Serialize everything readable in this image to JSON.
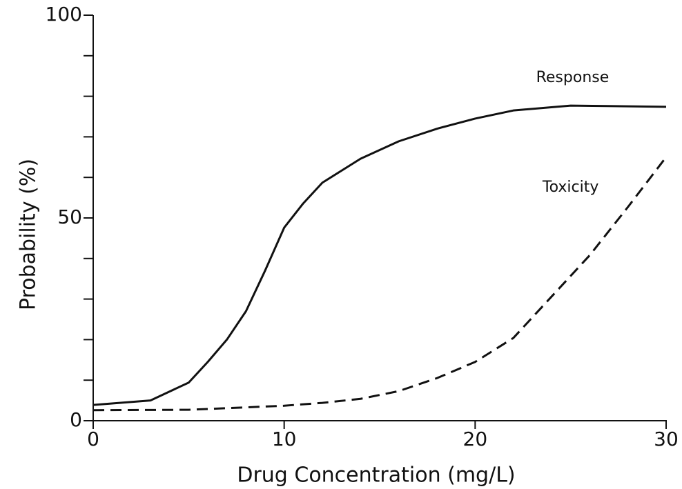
{
  "chart_data": {
    "type": "line",
    "x_label": "Drug Concentration (mg/L)",
    "y_label": "Probability (%)",
    "xlim": [
      0,
      30
    ],
    "xticks": [
      0,
      10,
      20,
      30
    ],
    "ylim": [
      0,
      100
    ],
    "yticks": [
      0,
      50,
      100
    ],
    "y_minor_ticks": [
      10,
      20,
      30,
      40,
      60,
      70,
      80,
      90
    ],
    "series": [
      {
        "name": "Response",
        "color": "#111111",
        "dash": "solid",
        "x": [
          0,
          3,
          5,
          6,
          7,
          8,
          9,
          10,
          11,
          12,
          14,
          16,
          18,
          20,
          22,
          25,
          30
        ],
        "values": [
          3.9,
          5,
          9.4,
          14.5,
          20,
          27,
          37,
          47.6,
          53.6,
          58.7,
          64.6,
          68.9,
          72,
          74.5,
          76.5,
          77.7,
          77.4
        ]
      },
      {
        "name": "Toxicity",
        "color": "#111111",
        "dash": "dashed",
        "x": [
          0,
          5,
          10,
          12,
          14,
          16,
          18,
          20,
          22,
          24,
          26,
          28,
          30
        ],
        "values": [
          2.6,
          2.7,
          3.7,
          4.4,
          5.4,
          7.3,
          10.5,
          14.5,
          20.4,
          30.6,
          40.8,
          52.7,
          65
        ]
      }
    ],
    "annotations": [
      {
        "text": "Response",
        "x": 25.1,
        "y": 84.5
      },
      {
        "text": "Toxicity",
        "x": 25,
        "y": 57.5
      }
    ]
  }
}
